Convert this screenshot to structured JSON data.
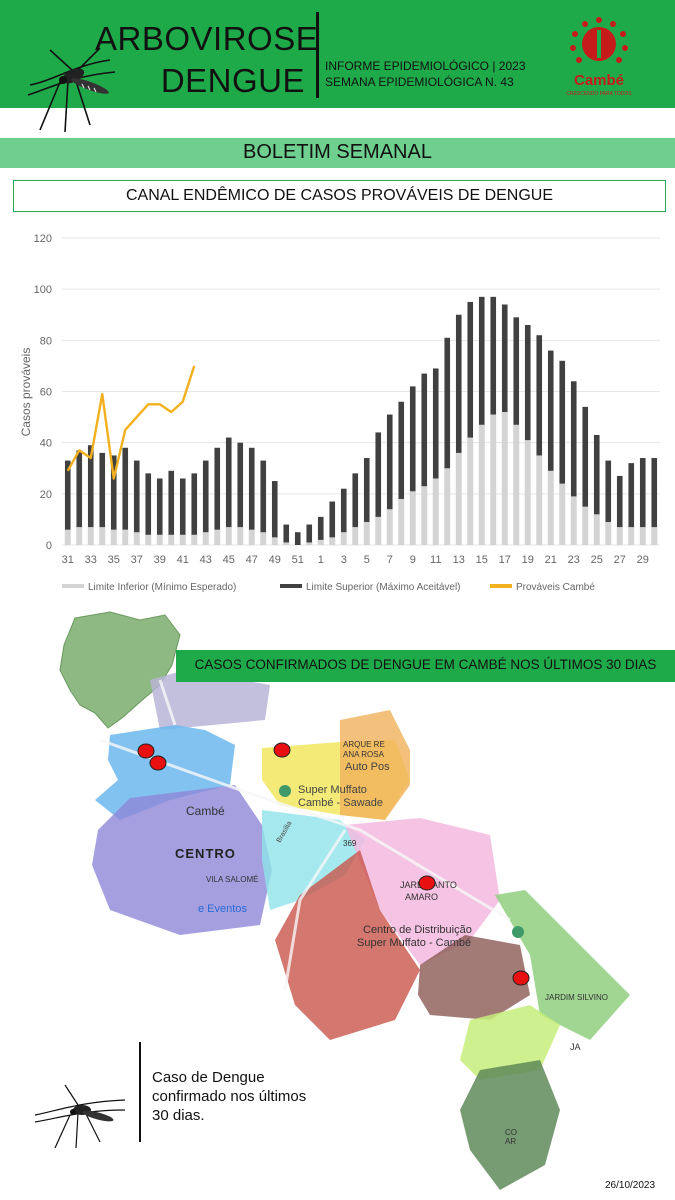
{
  "header": {
    "title_line1": "ARBOVIROSE",
    "title_line2": "DENGUE",
    "info_line1": "INFORME EPIDEMIOLÓGICO | 2023",
    "info_line2": "SEMANA EPIDEMIOLÓGICA  N. 43",
    "logo_name": "Cambé",
    "logo_tagline": "CRESCENDO PARA TODOS",
    "colors": {
      "band": "#1faa4a",
      "logo": "#c61b1b"
    }
  },
  "section_title": "BOLETIM SEMANAL",
  "chart_title": "CANAL ENDÊMICO DE CASOS PROVÁVEIS DE DENGUE",
  "map": {
    "banner": "CASOS CONFIRMADOS DE DENGUE EM CAMBÉ NOS ÚLTIMOS 30 DIAS",
    "labels": {
      "cambe": "Cambé",
      "centro": "CENTRO",
      "vila_salome": "VILA SALOMÉ",
      "eventos": "e Eventos",
      "parque": "ARQUE RE",
      "ana_rosa": "ANA ROSA",
      "auto_pos": "Auto Pos",
      "super_muffato": "Super Muffato",
      "cambe_sawade": "Cambé - Sawade",
      "jardim_santo": "JARD  SANTO",
      "amaro": "AMARO",
      "centro_dist": "Centro de Distribuição",
      "muffato_cambe": "Super Muffato - Cambé",
      "jardim_silvino": "JARDIM SILVINO",
      "brasilia": "Brasília",
      "route": "369",
      "ja": "JA",
      "co": "CO",
      "ar": "AR"
    },
    "legend_text": "Caso de Dengue\nconfirmado nos últimos\n30 dias.",
    "case_color": "#e81010"
  },
  "date": "26/10/2023",
  "chart_data": {
    "type": "bar",
    "title": "",
    "xlabel": "",
    "ylabel": "Casos prováveis",
    "ylim": [
      0,
      120
    ],
    "yticks": [
      0,
      20,
      40,
      60,
      80,
      100,
      120
    ],
    "grid": true,
    "legend_position": "bottom",
    "categories": [
      "31",
      "32",
      "33",
      "34",
      "35",
      "36",
      "37",
      "38",
      "39",
      "40",
      "41",
      "42",
      "43",
      "44",
      "45",
      "46",
      "47",
      "48",
      "49",
      "50",
      "51",
      "52",
      "1",
      "2",
      "3",
      "4",
      "5",
      "6",
      "7",
      "8",
      "9",
      "10",
      "11",
      "12",
      "13",
      "14",
      "15",
      "16",
      "17",
      "18",
      "19",
      "20",
      "21",
      "22",
      "23",
      "24",
      "25",
      "26",
      "27",
      "28",
      "29",
      "30"
    ],
    "tick_labels": [
      "31",
      "33",
      "35",
      "37",
      "39",
      "41",
      "43",
      "45",
      "47",
      "49",
      "51",
      "1",
      "3",
      "5",
      "7",
      "9",
      "11",
      "13",
      "15",
      "17",
      "19",
      "21",
      "23",
      "25",
      "27",
      "29"
    ],
    "series": [
      {
        "name": "Limite Inferior (Mínimo Esperado)",
        "type": "bar",
        "color": "#d4d4d4",
        "values": [
          6,
          7,
          7,
          7,
          6,
          6,
          5,
          4,
          4,
          4,
          4,
          4,
          5,
          6,
          7,
          7,
          6,
          5,
          3,
          1,
          0,
          1,
          2,
          3,
          5,
          7,
          9,
          11,
          14,
          18,
          21,
          23,
          26,
          30,
          36,
          42,
          47,
          51,
          52,
          47,
          41,
          35,
          29,
          24,
          19,
          15,
          12,
          9,
          7,
          7,
          7,
          7
        ]
      },
      {
        "name": "Limite Superior (Máximo Aceitável)",
        "type": "bar",
        "color": "#404040",
        "values": [
          33,
          37,
          39,
          36,
          35,
          38,
          33,
          28,
          26,
          29,
          26,
          28,
          33,
          38,
          42,
          40,
          38,
          33,
          25,
          8,
          5,
          8,
          11,
          17,
          22,
          28,
          34,
          44,
          51,
          56,
          62,
          67,
          69,
          81,
          90,
          95,
          97,
          97,
          94,
          89,
          86,
          82,
          76,
          72,
          64,
          54,
          43,
          33,
          27,
          32,
          34,
          34
        ]
      },
      {
        "name": "Prováveis Cambé",
        "type": "line",
        "color": "#f2b01e",
        "values": [
          29,
          37,
          34,
          59,
          26,
          45,
          50,
          55,
          55,
          52,
          56,
          70,
          null,
          null,
          null,
          null,
          null,
          null,
          null,
          null,
          null,
          null,
          null,
          null,
          null,
          null,
          null,
          null,
          null,
          null,
          null,
          null,
          null,
          null,
          null,
          null,
          null,
          null,
          null,
          null,
          null,
          null,
          null,
          null,
          null,
          null,
          null,
          null,
          null,
          null,
          null,
          null
        ]
      }
    ]
  }
}
